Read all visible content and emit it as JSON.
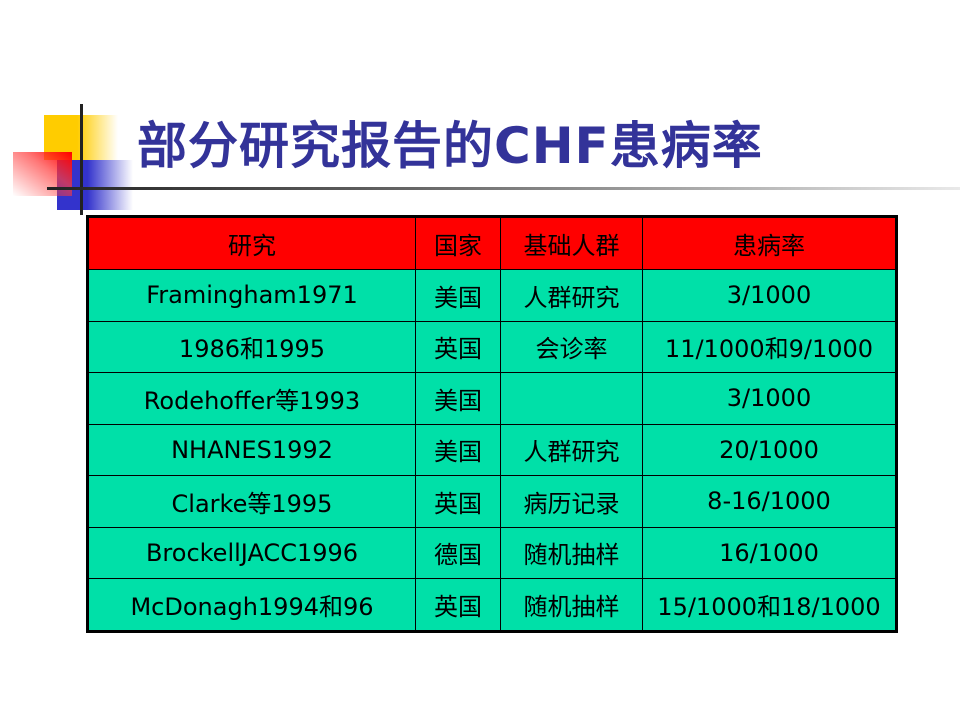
{
  "title": "部分研究报告的CHF患病率",
  "colors": {
    "title": "#333399",
    "header_bg": "#ff0000",
    "row_bg": "#00e0a8"
  },
  "table": {
    "headers": [
      "研究",
      "国家",
      "基础人群",
      "患病率"
    ],
    "rows": [
      [
        "Framingham1971",
        "美国",
        "人群研究",
        "3/1000"
      ],
      [
        "1986和1995",
        "英国",
        "会诊率",
        "11/1000和9/1000"
      ],
      [
        "Rodehoffer等1993",
        "美国",
        "",
        "3/1000"
      ],
      [
        "NHANES1992",
        "美国",
        "人群研究",
        "20/1000"
      ],
      [
        "Clarke等1995",
        "英国",
        "病历记录",
        "8-16/1000"
      ],
      [
        "BrockellJACC1996",
        "德国",
        "随机抽样",
        "16/1000"
      ],
      [
        "McDonagh1994和96",
        "英国",
        "随机抽样",
        "15/1000和18/1000"
      ]
    ]
  }
}
